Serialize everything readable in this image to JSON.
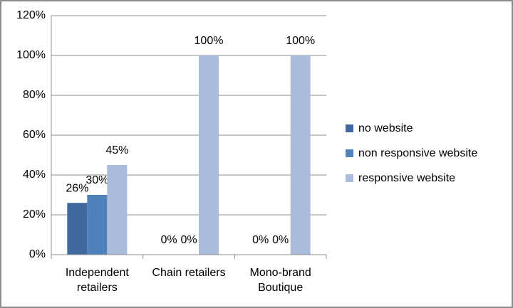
{
  "chart_data": {
    "type": "bar",
    "categories": [
      "Independent retailers",
      "Chain retailers",
      "Mono-brand Boutique"
    ],
    "series": [
      {
        "name": "no website",
        "color": "#40699e",
        "values": [
          26,
          0,
          0
        ],
        "value_labels": [
          "26%",
          "0%",
          "0%"
        ]
      },
      {
        "name": "non responsive website",
        "color": "#4f81bd",
        "values": [
          30,
          0,
          0
        ],
        "value_labels": [
          "30%",
          "0%",
          "0%"
        ]
      },
      {
        "name": "responsive website",
        "color": "#aabbdb",
        "values": [
          45,
          100,
          100
        ],
        "value_labels": [
          "45%",
          "100%",
          "100%"
        ]
      }
    ],
    "ylim": [
      0,
      120
    ],
    "yticks": [
      {
        "value": 0,
        "label": "0%"
      },
      {
        "value": 20,
        "label": "20%"
      },
      {
        "value": 40,
        "label": "40%"
      },
      {
        "value": 60,
        "label": "60%"
      },
      {
        "value": 80,
        "label": "80%"
      },
      {
        "value": 100,
        "label": "100%"
      },
      {
        "value": 120,
        "label": "120%"
      }
    ],
    "grid": true,
    "legend": "right"
  }
}
